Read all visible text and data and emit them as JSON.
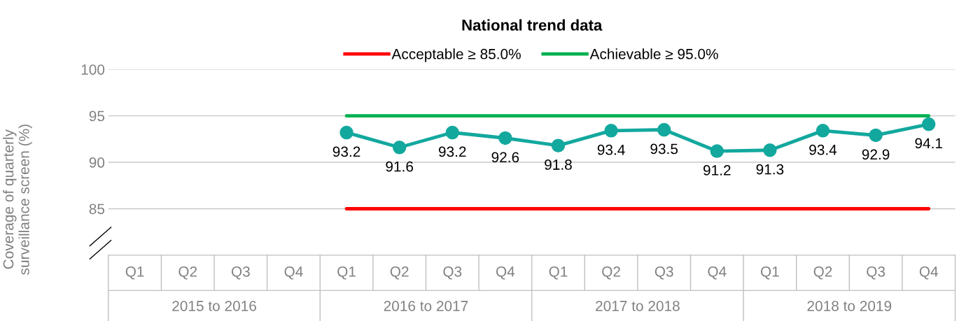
{
  "chart_data": {
    "type": "line",
    "title": "National trend data",
    "ylabel": "Coverage of quarterly\nsurveillance screen (%)",
    "categories": [
      "Q1",
      "Q2",
      "Q3",
      "Q4",
      "Q1",
      "Q2",
      "Q3",
      "Q4",
      "Q1",
      "Q2",
      "Q3",
      "Q4",
      "Q1",
      "Q2",
      "Q3",
      "Q4"
    ],
    "annotations": [
      "2015 to 2016",
      "2016 to 2017",
      "2017 to 2018",
      "2018 to 2019"
    ],
    "series": [
      {
        "name": "Acceptable ≥ 85.0%",
        "color": "#ff0000",
        "marker": "none",
        "data_labels": false,
        "values": [
          null,
          null,
          null,
          null,
          85,
          85,
          85,
          85,
          85,
          85,
          85,
          85,
          85,
          85,
          85,
          85
        ]
      },
      {
        "name": "Achievable ≥ 95.0%",
        "color": "#00b050",
        "marker": "none",
        "data_labels": false,
        "values": [
          null,
          null,
          null,
          null,
          95,
          95,
          95,
          95,
          95,
          95,
          95,
          95,
          95,
          95,
          95,
          95
        ]
      },
      {
        "color": "#13a89e",
        "marker": "circle",
        "data_labels": true,
        "values": [
          null,
          null,
          null,
          null,
          93.2,
          91.6,
          93.2,
          92.6,
          91.8,
          93.4,
          93.5,
          91.2,
          91.3,
          93.4,
          92.9,
          94.1
        ]
      }
    ],
    "ylim": [
      80,
      100
    ],
    "yticks": [
      85,
      90,
      95,
      100
    ],
    "grid": "y",
    "legend": "top",
    "line_style": "solid"
  }
}
